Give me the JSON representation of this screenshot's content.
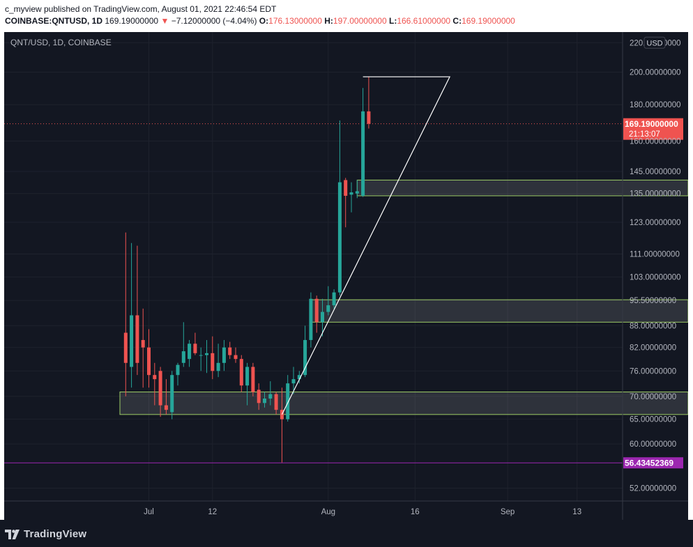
{
  "header": {
    "published": "c_myview published on TradingView.com, August 01, 2021 22:46:54 EDT",
    "symbol": "COINBASE:QNTUSD, 1D",
    "last": "169.19000000",
    "change_arrow": "▼",
    "change": "−7.12000000 (−4.04%)",
    "o_label": "O:",
    "o_value": "176.13000000",
    "h_label": "H:",
    "h_value": "197.00000000",
    "l_label": "L:",
    "l_value": "166.61000000",
    "c_label": "C:",
    "c_value": "169.19000000"
  },
  "pane": {
    "legend": "QNT/USD, 1D, COINBASE",
    "currency": "USD"
  },
  "footer": {
    "brand": "TradingView",
    "logo_icon": "tradingview-logo-icon"
  },
  "colors": {
    "background": "#131722",
    "grid": "#1e222d",
    "up": "#26a69a",
    "down": "#ef5350",
    "text": "#b2b5be",
    "zone_border": "#9ccc65",
    "support_line": "#9c27b0",
    "last_price": "#ef5350"
  },
  "chart_data": {
    "type": "candlestick",
    "symbol": "QNT/USD",
    "interval": "1D",
    "exchange": "COINBASE",
    "price_scale": "log",
    "ylim": [
      48,
      225
    ],
    "y_ticks": [
      {
        "value": 220,
        "label": "220.00000000"
      },
      {
        "value": 200,
        "label": "200.00000000"
      },
      {
        "value": 180,
        "label": "180.00000000"
      },
      {
        "value": 160,
        "label": "160.00000000"
      },
      {
        "value": 145,
        "label": "145.00000000"
      },
      {
        "value": 135,
        "label": "135.00000000"
      },
      {
        "value": 123,
        "label": "123.00000000"
      },
      {
        "value": 111,
        "label": "111.00000000"
      },
      {
        "value": 103,
        "label": "103.00000000"
      },
      {
        "value": 95.5,
        "label": "95.50000000"
      },
      {
        "value": 88,
        "label": "88.00000000"
      },
      {
        "value": 82,
        "label": "82.00000000"
      },
      {
        "value": 76,
        "label": "76.00000000"
      },
      {
        "value": 70,
        "label": "70.00000000"
      },
      {
        "value": 65,
        "label": "65.00000000"
      },
      {
        "value": 60,
        "label": "60.00000000"
      },
      {
        "value": 52,
        "label": "52.00000000"
      }
    ],
    "x_ticks": [
      {
        "date": "2021-07-01",
        "label": "Jul"
      },
      {
        "date": "2021-07-12",
        "label": "12"
      },
      {
        "date": "2021-08-01",
        "label": "Aug"
      },
      {
        "date": "2021-08-16",
        "label": "16"
      },
      {
        "date": "2021-09-01",
        "label": "Sep"
      },
      {
        "date": "2021-09-13",
        "label": "13"
      }
    ],
    "xlim": [
      "2021-06-06",
      "2021-09-14"
    ],
    "candles": [
      {
        "date": "2021-06-27",
        "o": 86.0,
        "h": 119.0,
        "l": 70.0,
        "c": 78.0
      },
      {
        "date": "2021-06-28",
        "o": 77.0,
        "h": 115.0,
        "l": 72.0,
        "c": 91.0
      },
      {
        "date": "2021-06-29",
        "o": 91.0,
        "h": 114.0,
        "l": 75.0,
        "c": 78.0
      },
      {
        "date": "2021-06-30",
        "o": 84.0,
        "h": 93.0,
        "l": 72.0,
        "c": 82.0
      },
      {
        "date": "2021-07-01",
        "o": 82.0,
        "h": 87.0,
        "l": 72.0,
        "c": 75.0
      },
      {
        "date": "2021-07-02",
        "o": 75.0,
        "h": 78.0,
        "l": 68.0,
        "c": 74.0
      },
      {
        "date": "2021-07-03",
        "o": 76.0,
        "h": 77.0,
        "l": 65.5,
        "c": 68.0
      },
      {
        "date": "2021-07-04",
        "o": 68.0,
        "h": 74.0,
        "l": 66.0,
        "c": 67.0
      },
      {
        "date": "2021-07-05",
        "o": 66.5,
        "h": 76.0,
        "l": 65.0,
        "c": 75.0
      },
      {
        "date": "2021-07-06",
        "o": 75.0,
        "h": 78.0,
        "l": 72.5,
        "c": 77.5
      },
      {
        "date": "2021-07-07",
        "o": 78.0,
        "h": 89.0,
        "l": 77.0,
        "c": 81.0
      },
      {
        "date": "2021-07-08",
        "o": 79.0,
        "h": 84.0,
        "l": 77.0,
        "c": 83.0
      },
      {
        "date": "2021-07-09",
        "o": 83.0,
        "h": 86.0,
        "l": 80.0,
        "c": 80.5
      },
      {
        "date": "2021-07-10",
        "o": 80.0,
        "h": 82.0,
        "l": 76.0,
        "c": 80.0
      },
      {
        "date": "2021-07-11",
        "o": 80.0,
        "h": 84.0,
        "l": 75.5,
        "c": 80.5
      },
      {
        "date": "2021-07-12",
        "o": 80.5,
        "h": 85.0,
        "l": 74.0,
        "c": 76.0
      },
      {
        "date": "2021-07-13",
        "o": 76.0,
        "h": 83.0,
        "l": 74.5,
        "c": 78.0
      },
      {
        "date": "2021-07-14",
        "o": 78.0,
        "h": 84.0,
        "l": 76.0,
        "c": 82.0
      },
      {
        "date": "2021-07-15",
        "o": 82.0,
        "h": 83.5,
        "l": 79.0,
        "c": 80.0
      },
      {
        "date": "2021-07-16",
        "o": 80.0,
        "h": 82.0,
        "l": 78.0,
        "c": 79.0
      },
      {
        "date": "2021-07-17",
        "o": 79.0,
        "h": 80.0,
        "l": 71.0,
        "c": 72.5
      },
      {
        "date": "2021-07-18",
        "o": 72.5,
        "h": 78.0,
        "l": 68.0,
        "c": 77.0
      },
      {
        "date": "2021-07-19",
        "o": 77.0,
        "h": 78.0,
        "l": 70.0,
        "c": 71.0
      },
      {
        "date": "2021-07-20",
        "o": 71.5,
        "h": 73.0,
        "l": 67.0,
        "c": 68.5
      },
      {
        "date": "2021-07-21",
        "o": 68.5,
        "h": 71.0,
        "l": 67.5,
        "c": 69.5
      },
      {
        "date": "2021-07-22",
        "o": 69.5,
        "h": 73.5,
        "l": 68.0,
        "c": 70.5
      },
      {
        "date": "2021-07-23",
        "o": 70.5,
        "h": 71.0,
        "l": 66.0,
        "c": 67.0
      },
      {
        "date": "2021-07-24",
        "o": 67.0,
        "h": 72.0,
        "l": 56.5,
        "c": 65.0
      },
      {
        "date": "2021-07-25",
        "o": 65.0,
        "h": 75.0,
        "l": 64.5,
        "c": 73.0
      },
      {
        "date": "2021-07-26",
        "o": 73.0,
        "h": 77.0,
        "l": 70.5,
        "c": 74.0
      },
      {
        "date": "2021-07-27",
        "o": 74.0,
        "h": 76.0,
        "l": 73.0,
        "c": 75.0
      },
      {
        "date": "2021-07-28",
        "o": 75.0,
        "h": 88.0,
        "l": 74.5,
        "c": 84.0
      },
      {
        "date": "2021-07-29",
        "o": 84.0,
        "h": 98.0,
        "l": 82.0,
        "c": 96.0
      },
      {
        "date": "2021-07-30",
        "o": 96.0,
        "h": 97.0,
        "l": 86.0,
        "c": 89.0
      },
      {
        "date": "2021-07-31",
        "o": 89.0,
        "h": 96.0,
        "l": 85.0,
        "c": 92.0
      },
      {
        "date": "2021-08-01",
        "o": 92.0,
        "h": 100.0,
        "l": 91.0,
        "c": 94.0
      },
      {
        "date": "2021-08-02",
        "o": 94.0,
        "h": 99.0,
        "l": 93.0,
        "c": 98.0
      },
      {
        "date": "2021-08-03",
        "o": 98.0,
        "h": 171.0,
        "l": 97.0,
        "c": 140.0
      },
      {
        "date": "2021-08-04",
        "o": 141.0,
        "h": 142.0,
        "l": 121.0,
        "c": 134.0
      },
      {
        "date": "2021-08-05",
        "o": 134.5,
        "h": 140.0,
        "l": 127.0,
        "c": 135.5
      },
      {
        "date": "2021-08-06",
        "o": 135.0,
        "h": 141.0,
        "l": 133.0,
        "c": 136.0
      },
      {
        "date": "2021-08-07",
        "o": 134.0,
        "h": 190.0,
        "l": 133.5,
        "c": 176.13
      },
      {
        "date": "2021-08-08",
        "o": 176.13,
        "h": 197.0,
        "l": 166.61,
        "c": 169.19
      }
    ],
    "zones": [
      {
        "from": "2021-06-26",
        "low": 66.0,
        "high": 71.0
      },
      {
        "from": "2021-07-29",
        "low": 89.0,
        "high": 95.7
      },
      {
        "from": "2021-08-06",
        "low": 134.0,
        "high": 141.0
      }
    ],
    "horizontal_line": {
      "value": 56.43452369,
      "label": "56.43452369"
    },
    "last_price": {
      "value": 169.19,
      "label": "169.19000000",
      "countdown": "21:13:07"
    },
    "drawings": [
      {
        "type": "polyline",
        "points": [
          [
            "2021-07-24",
            66.0
          ],
          [
            "2021-08-22",
            197.0
          ],
          [
            "2021-08-07",
            197.0
          ]
        ]
      }
    ]
  }
}
